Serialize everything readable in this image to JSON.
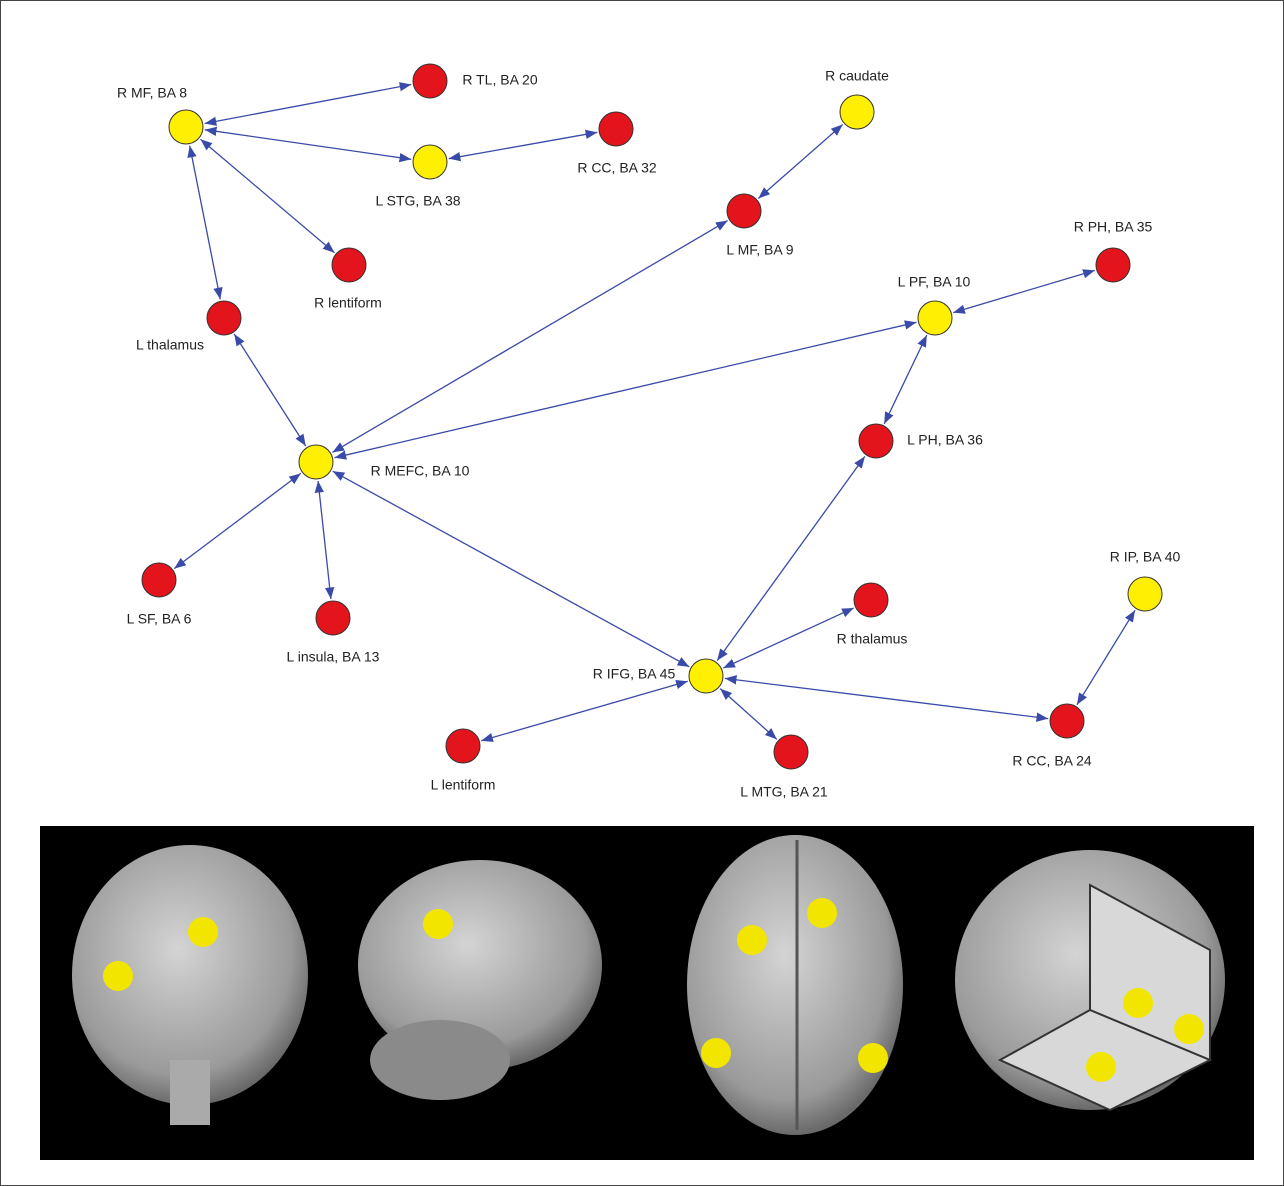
{
  "nodes": [
    {
      "label": "R MF, BA 8"
    },
    {
      "label": "R TL, BA 20"
    },
    {
      "label": "L STG, BA 38"
    },
    {
      "label": "R CC, BA 32"
    },
    {
      "label": "R lentiform"
    },
    {
      "label": "R caudate"
    },
    {
      "label": "L MF, BA 9"
    },
    {
      "label": "R PH, BA 35"
    },
    {
      "label": "L PF, BA 10"
    },
    {
      "label": "L thalamus"
    },
    {
      "label": "R MEFC, BA 10"
    },
    {
      "label": "L PH, BA 36"
    },
    {
      "label": "L SF, BA 6"
    },
    {
      "label": "L insula, BA 13"
    },
    {
      "label": "R thalamus"
    },
    {
      "label": "R IP, BA 40"
    },
    {
      "label": "R IFG, BA 45"
    },
    {
      "label": "L lentiform"
    },
    {
      "label": "L MTG, BA 21"
    },
    {
      "label": "R CC, BA 24"
    }
  ]
}
